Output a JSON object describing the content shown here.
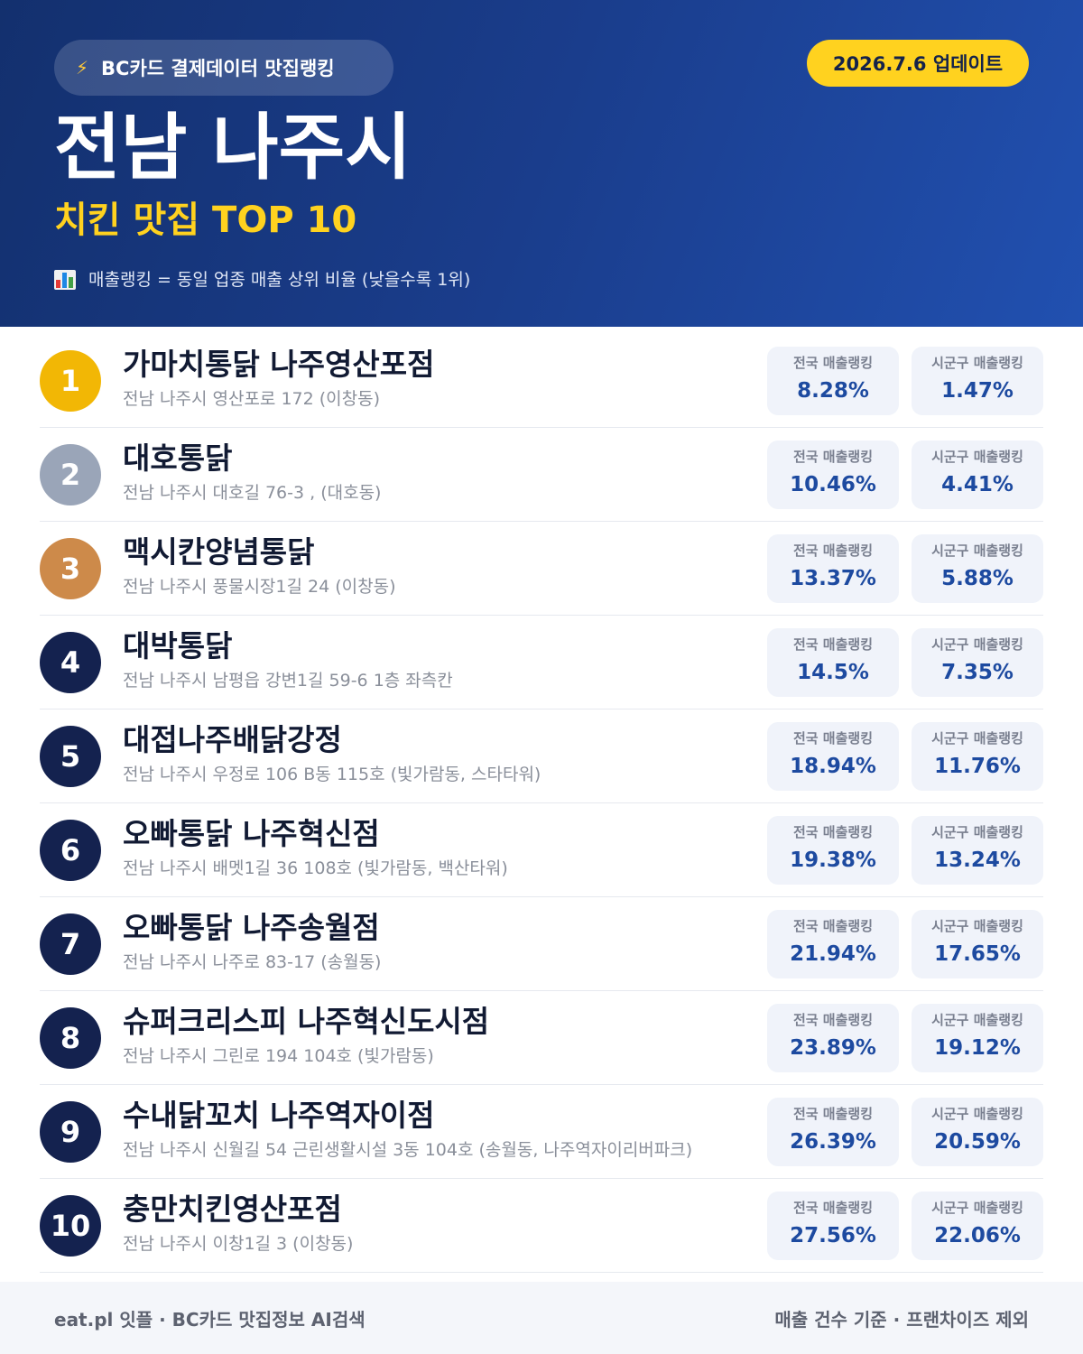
{
  "header": {
    "source_badge": "BC카드 결제데이터 맛집랭킹",
    "update_badge": "2026.7.6 업데이트",
    "city": "전남 나주시",
    "subtitle": "치킨 맛집 TOP 10",
    "note": "매출랭킹 = 동일 업종 매출 상위 비율 (낮을수록 1위)"
  },
  "stat_labels": {
    "national": "전국 매출랭킹",
    "local": "시군구 매출랭킹"
  },
  "colors": {
    "gold": "#f2b705",
    "silver": "#9aa5b8",
    "bronze": "#cd8a4a",
    "navy": "#14224f",
    "accent": "#ffd21f"
  },
  "restaurants": [
    {
      "rank": "1",
      "name": "가마치통닭 나주영산포점",
      "address": "전남 나주시 영산포로 172 (이창동)",
      "national": "8.28%",
      "local": "1.47%",
      "medal": "gold"
    },
    {
      "rank": "2",
      "name": "대호통닭",
      "address": "전남 나주시 대호길 76-3 , (대호동)",
      "national": "10.46%",
      "local": "4.41%",
      "medal": "silver"
    },
    {
      "rank": "3",
      "name": "맥시칸양념통닭",
      "address": "전남 나주시 풍물시장1길 24 (이창동)",
      "national": "13.37%",
      "local": "5.88%",
      "medal": "bronze"
    },
    {
      "rank": "4",
      "name": "대박통닭",
      "address": "전남 나주시 남평읍 강변1길 59-6 1층 좌측칸",
      "national": "14.5%",
      "local": "7.35%",
      "medal": "navy"
    },
    {
      "rank": "5",
      "name": "대접나주배닭강정",
      "address": "전남 나주시 우정로 106 B동 115호 (빛가람동, 스타타워)",
      "national": "18.94%",
      "local": "11.76%",
      "medal": "navy"
    },
    {
      "rank": "6",
      "name": "오빠통닭 나주혁신점",
      "address": "전남 나주시 배멧1길 36 108호 (빛가람동, 백산타워)",
      "national": "19.38%",
      "local": "13.24%",
      "medal": "navy"
    },
    {
      "rank": "7",
      "name": "오빠통닭 나주송월점",
      "address": "전남 나주시 나주로 83-17 (송월동)",
      "national": "21.94%",
      "local": "17.65%",
      "medal": "navy"
    },
    {
      "rank": "8",
      "name": "슈퍼크리스피 나주혁신도시점",
      "address": "전남 나주시 그린로 194 104호 (빛가람동)",
      "national": "23.89%",
      "local": "19.12%",
      "medal": "navy"
    },
    {
      "rank": "9",
      "name": "수내닭꼬치 나주역자이점",
      "address": "전남 나주시 신월길 54 근린생활시설 3동 104호 (송월동, 나주역자이리버파크)",
      "national": "26.39%",
      "local": "20.59%",
      "medal": "navy"
    },
    {
      "rank": "10",
      "name": "충만치킨영산포점",
      "address": "전남 나주시 이창1길 3 (이창동)",
      "national": "27.56%",
      "local": "22.06%",
      "medal": "navy"
    }
  ],
  "footer": {
    "left": "eat.pl 잇플 · BC카드 맛집정보 AI검색",
    "right": "매출 건수 기준 · 프랜차이즈 제외"
  }
}
